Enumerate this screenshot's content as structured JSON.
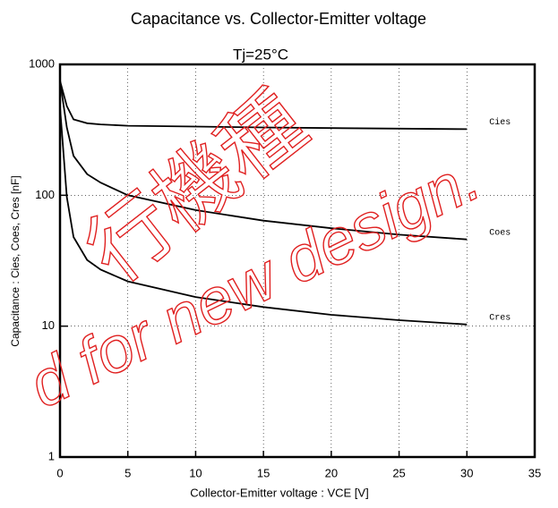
{
  "chart_data": {
    "type": "line",
    "title": "Capacitance vs. Collector-Emitter voltage",
    "subtitle": "Tj=25°C",
    "xlabel": "Collector-Emitter voltage  :  VCE [V]",
    "ylabel": "Capacitance  :  Cies, Coes, Cres  [nF]",
    "yscale": "log",
    "grid": true,
    "xlim": [
      0,
      35
    ],
    "xticks": [
      0,
      5,
      10,
      15,
      20,
      25,
      30,
      35
    ],
    "ylim": [
      1,
      1000
    ],
    "yticks": [
      1,
      10,
      100,
      1000
    ],
    "x": [
      0,
      0.5,
      1,
      2,
      3,
      5,
      10,
      15,
      20,
      25,
      30
    ],
    "series": [
      {
        "name": "Cies",
        "color": "#000000",
        "values": [
          750,
          480,
          380,
          355,
          348,
          340,
          335,
          330,
          326,
          323,
          320
        ]
      },
      {
        "name": "Coes",
        "color": "#000000",
        "values": [
          750,
          330,
          200,
          145,
          125,
          100,
          77,
          64,
          56,
          50,
          46
        ]
      },
      {
        "name": "Cres",
        "color": "#000000",
        "values": [
          470,
          97,
          48,
          32,
          27,
          22,
          16.7,
          14,
          12.2,
          11.1,
          10.3
        ]
      }
    ],
    "annotations": [
      "行機種",
      "d for new design."
    ]
  }
}
